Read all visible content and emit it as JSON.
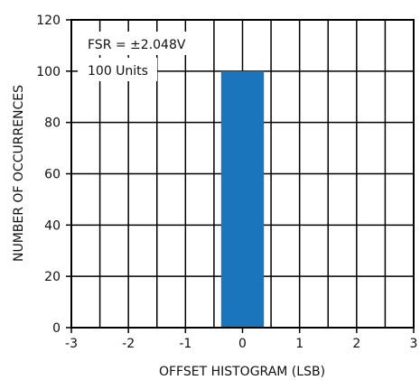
{
  "chart_data": {
    "type": "bar",
    "title": "",
    "xlabel": "OFFSET HISTOGRAM (LSB)",
    "ylabel": "NUMBER OF OCCURRENCES",
    "xlim": [
      -3,
      3
    ],
    "ylim": [
      0,
      120
    ],
    "xticks": [
      -3,
      -2,
      -1,
      0,
      1,
      2,
      3
    ],
    "xtick_labels": [
      "-3",
      "-2",
      "-1",
      "0",
      "1",
      "2",
      "3"
    ],
    "yticks": [
      0,
      20,
      40,
      60,
      80,
      100,
      120
    ],
    "ytick_labels": [
      "0",
      "20",
      "40",
      "60",
      "80",
      "100",
      "120"
    ],
    "minor_x_step": 0.5,
    "grid": true,
    "bars": [
      {
        "x": 0,
        "value": 100,
        "width": 0.75
      }
    ],
    "annotations": [
      "FSR = ±2.048V",
      "100 Units"
    ],
    "colors": {
      "bar": "#1B75BC",
      "grid": "#000000",
      "axis": "#000000"
    }
  }
}
